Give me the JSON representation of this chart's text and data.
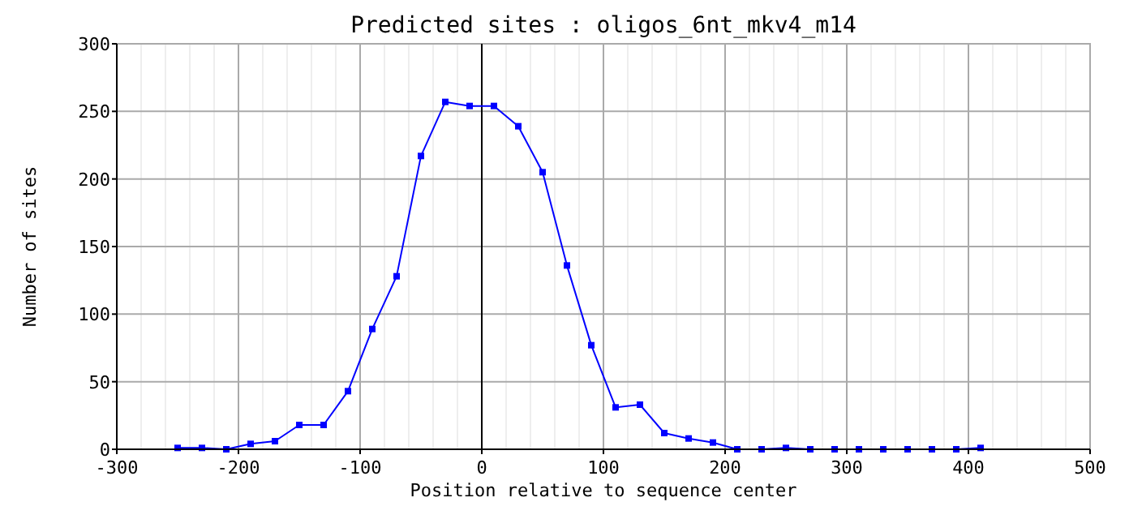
{
  "chart_data": {
    "type": "line",
    "title": "Predicted sites : oligos_6nt_mkv4_m14",
    "xlabel": "Position relative to sequence center",
    "ylabel": "Number of sites",
    "x": [
      -250,
      -230,
      -210,
      -190,
      -170,
      -150,
      -130,
      -110,
      -90,
      -70,
      -50,
      -30,
      -10,
      10,
      30,
      50,
      70,
      90,
      110,
      130,
      150,
      170,
      190,
      210,
      230,
      250,
      270,
      290,
      310,
      330,
      350,
      370,
      390,
      410
    ],
    "series": [
      {
        "color": "#0000ff",
        "values": [
          1,
          1,
          0,
          4,
          6,
          18,
          18,
          43,
          89,
          128,
          217,
          257,
          254,
          254,
          239,
          205,
          136,
          77,
          31,
          33,
          12,
          8,
          5,
          0,
          0,
          1,
          0,
          0,
          0,
          0,
          0,
          0,
          0,
          1
        ]
      }
    ],
    "xlim": [
      -300,
      500
    ],
    "xticks": [
      -300,
      -200,
      -100,
      0,
      100,
      200,
      300,
      400,
      500
    ],
    "ylim": [
      0,
      300
    ],
    "yticks": [
      0,
      50,
      100,
      150,
      200,
      250,
      300
    ],
    "ref_lines": [
      {
        "axis": "x",
        "value": 0,
        "color": "#000000"
      }
    ],
    "grid": true,
    "marker": "square",
    "line_style": "solid"
  }
}
